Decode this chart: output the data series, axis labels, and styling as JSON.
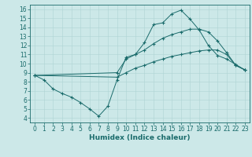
{
  "title": "",
  "xlabel": "Humidex (Indice chaleur)",
  "ylabel": "",
  "bg_color": "#cce8e8",
  "line_color": "#1a6b6b",
  "grid_color": "#aed4d4",
  "xlim": [
    -0.5,
    23.5
  ],
  "ylim": [
    3.5,
    16.5
  ],
  "xticks": [
    0,
    1,
    2,
    3,
    4,
    5,
    6,
    7,
    8,
    9,
    10,
    11,
    12,
    13,
    14,
    15,
    16,
    17,
    18,
    19,
    20,
    21,
    22,
    23
  ],
  "yticks": [
    4,
    5,
    6,
    7,
    8,
    9,
    10,
    11,
    12,
    13,
    14,
    15,
    16
  ],
  "line1_x": [
    0,
    1,
    2,
    3,
    4,
    5,
    6,
    7,
    8,
    9,
    10,
    11,
    12,
    13,
    14,
    15,
    16,
    17,
    18,
    19,
    20,
    21,
    22,
    23
  ],
  "line1_y": [
    8.7,
    8.2,
    7.2,
    6.7,
    6.3,
    5.7,
    5.0,
    4.2,
    5.3,
    8.2,
    10.7,
    11.0,
    12.3,
    14.3,
    14.5,
    15.5,
    15.9,
    14.9,
    13.7,
    12.0,
    10.9,
    10.5,
    9.9,
    9.3
  ],
  "line2_x": [
    0,
    9,
    10,
    11,
    12,
    13,
    14,
    15,
    16,
    17,
    18,
    19,
    20,
    21,
    22,
    23
  ],
  "line2_y": [
    8.7,
    9.0,
    10.5,
    11.0,
    11.5,
    12.2,
    12.8,
    13.2,
    13.5,
    13.8,
    13.8,
    13.5,
    12.5,
    11.2,
    9.8,
    9.3
  ],
  "line3_x": [
    0,
    9,
    10,
    11,
    12,
    13,
    14,
    15,
    16,
    17,
    18,
    19,
    20,
    21,
    22,
    23
  ],
  "line3_y": [
    8.7,
    8.5,
    9.0,
    9.5,
    9.8,
    10.2,
    10.5,
    10.8,
    11.0,
    11.2,
    11.4,
    11.5,
    11.5,
    11.0,
    9.8,
    9.3
  ],
  "tick_fontsize": 5.5,
  "xlabel_fontsize": 6.5,
  "linewidth": 0.7,
  "markersize": 3.5
}
